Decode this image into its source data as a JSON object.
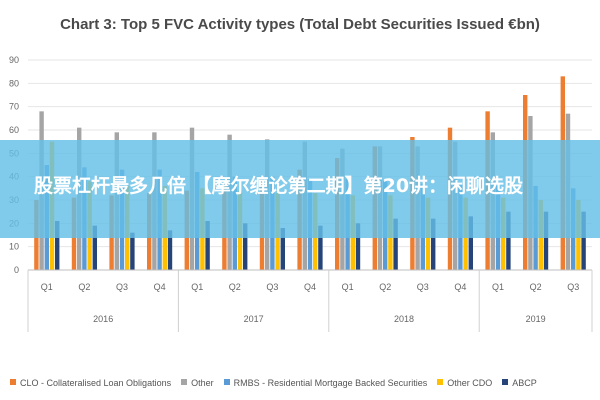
{
  "banner": {
    "text": "股票杠杆最多几倍 【摩尔缠论第二期】第20讲：闲聊选股"
  },
  "chart_data": {
    "type": "bar",
    "title": "Chart 3: Top 5 FVC Activity types (Total Debt Securities Issued €bn)",
    "xlabel": "",
    "ylabel": "",
    "ylim": [
      0,
      90
    ],
    "yticks": [
      0,
      10,
      20,
      30,
      40,
      50,
      60,
      70,
      80,
      90
    ],
    "grid": true,
    "legend_position": "bottom",
    "categories": [
      "Q1",
      "Q2",
      "Q3",
      "Q4",
      "Q1",
      "Q2",
      "Q3",
      "Q4",
      "Q1",
      "Q2",
      "Q3",
      "Q4",
      "Q1",
      "Q2",
      "Q3"
    ],
    "groups": [
      {
        "label": "2016",
        "count": 4
      },
      {
        "label": "2017",
        "count": 4
      },
      {
        "label": "2018",
        "count": 4
      },
      {
        "label": "2019",
        "count": 3
      }
    ],
    "series": [
      {
        "name": "CLO - Collateralised Loan Obligations",
        "color": "#ed7d31",
        "values": [
          30,
          31,
          32,
          33,
          34,
          37,
          39,
          43,
          48,
          53,
          57,
          61,
          68,
          75,
          83
        ]
      },
      {
        "name": "Other",
        "color": "#a5a5a5",
        "values": [
          68,
          61,
          59,
          59,
          61,
          58,
          56,
          55,
          52,
          53,
          53,
          55,
          59,
          66,
          67
        ]
      },
      {
        "name": "RMBS - Residential Mortgage Backed Securities",
        "color": "#5b9bd5",
        "values": [
          45,
          44,
          43,
          43,
          42,
          40,
          40,
          39,
          39,
          38,
          37,
          37,
          36,
          36,
          35
        ]
      },
      {
        "name": "Other CDO",
        "color": "#ffc000",
        "values": [
          55,
          38,
          36,
          36,
          35,
          34,
          33,
          33,
          32,
          32,
          31,
          31,
          31,
          30,
          30
        ]
      },
      {
        "name": "ABCP",
        "color": "#264478",
        "values": [
          21,
          19,
          16,
          17,
          21,
          20,
          18,
          19,
          20,
          22,
          22,
          23,
          25,
          25,
          25
        ]
      }
    ]
  }
}
